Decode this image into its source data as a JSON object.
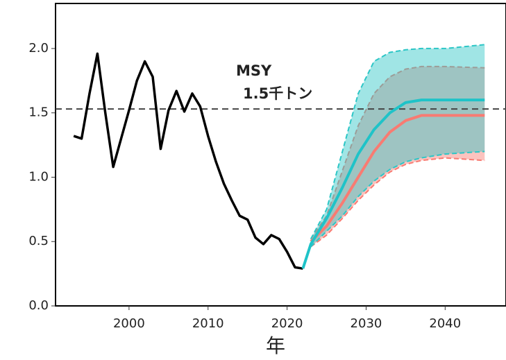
{
  "chart_data": {
    "type": "line",
    "x_label": "年",
    "xlim": [
      1990.7,
      2047.7
    ],
    "ylim": [
      0,
      2.35
    ],
    "xticks": [
      2000,
      2010,
      2020,
      2030,
      2040
    ],
    "yticks": [
      {
        "value": 0,
        "label": "0.0"
      },
      {
        "value": 0.5,
        "label": "0.5"
      },
      {
        "value": 1,
        "label": "1.0"
      },
      {
        "value": 1.5,
        "label": "1.5"
      },
      {
        "value": 2,
        "label": "2.0"
      }
    ],
    "reference_line": {
      "value": 1.53,
      "color": "#444444",
      "label_lines": [
        "MSY",
        "1.5千トン"
      ]
    },
    "bands": [
      {
        "color": "#f87b72",
        "x": [
          2023,
          2025,
          2027,
          2029,
          2031,
          2033,
          2035,
          2037,
          2040,
          2045
        ],
        "lower": [
          0.46,
          0.55,
          0.68,
          0.82,
          0.94,
          1.04,
          1.1,
          1.13,
          1.15,
          1.13
        ],
        "upper": [
          0.52,
          0.7,
          1.05,
          1.4,
          1.65,
          1.78,
          1.84,
          1.86,
          1.86,
          1.85
        ]
      },
      {
        "color": "#2cc6c6",
        "x": [
          2023,
          2025,
          2027,
          2029,
          2031,
          2033,
          2035,
          2037,
          2040,
          2045
        ],
        "lower": [
          0.46,
          0.58,
          0.7,
          0.85,
          0.97,
          1.06,
          1.12,
          1.15,
          1.18,
          1.2
        ],
        "upper": [
          0.52,
          0.75,
          1.2,
          1.65,
          1.9,
          1.97,
          1.99,
          2.0,
          2.0,
          2.03
        ]
      }
    ],
    "series": [
      {
        "color": "#000000",
        "width": 3.5,
        "x": [
          1993,
          1994,
          1995,
          1996,
          1997,
          1998,
          1999,
          2000,
          2001,
          2002,
          2003,
          2004,
          2005,
          2006,
          2007,
          2008,
          2009,
          2010,
          2011,
          2012,
          2013,
          2014,
          2015,
          2016,
          2017,
          2018,
          2019,
          2020,
          2021,
          2022
        ],
        "values": [
          1.32,
          1.3,
          1.65,
          1.96,
          1.5,
          1.08,
          1.3,
          1.52,
          1.75,
          1.9,
          1.78,
          1.22,
          1.52,
          1.67,
          1.51,
          1.65,
          1.55,
          1.32,
          1.12,
          0.95,
          0.82,
          0.7,
          0.67,
          0.53,
          0.48,
          0.55,
          0.52,
          0.42,
          0.3,
          0.29
        ]
      },
      {
        "color": "#f87b72",
        "width": 4,
        "x": [
          2023,
          2025,
          2027,
          2029,
          2031,
          2033,
          2035,
          2037,
          2040,
          2045
        ],
        "values": [
          0.5,
          0.62,
          0.8,
          1.0,
          1.2,
          1.35,
          1.44,
          1.48,
          1.48,
          1.48
        ]
      },
      {
        "color": "#1fc3c8",
        "width": 4,
        "x": [
          2022,
          2023,
          2025,
          2027,
          2029,
          2031,
          2033,
          2035,
          2037,
          2040,
          2045
        ],
        "values": [
          0.29,
          0.48,
          0.68,
          0.92,
          1.18,
          1.37,
          1.5,
          1.58,
          1.6,
          1.6,
          1.6
        ]
      }
    ]
  }
}
